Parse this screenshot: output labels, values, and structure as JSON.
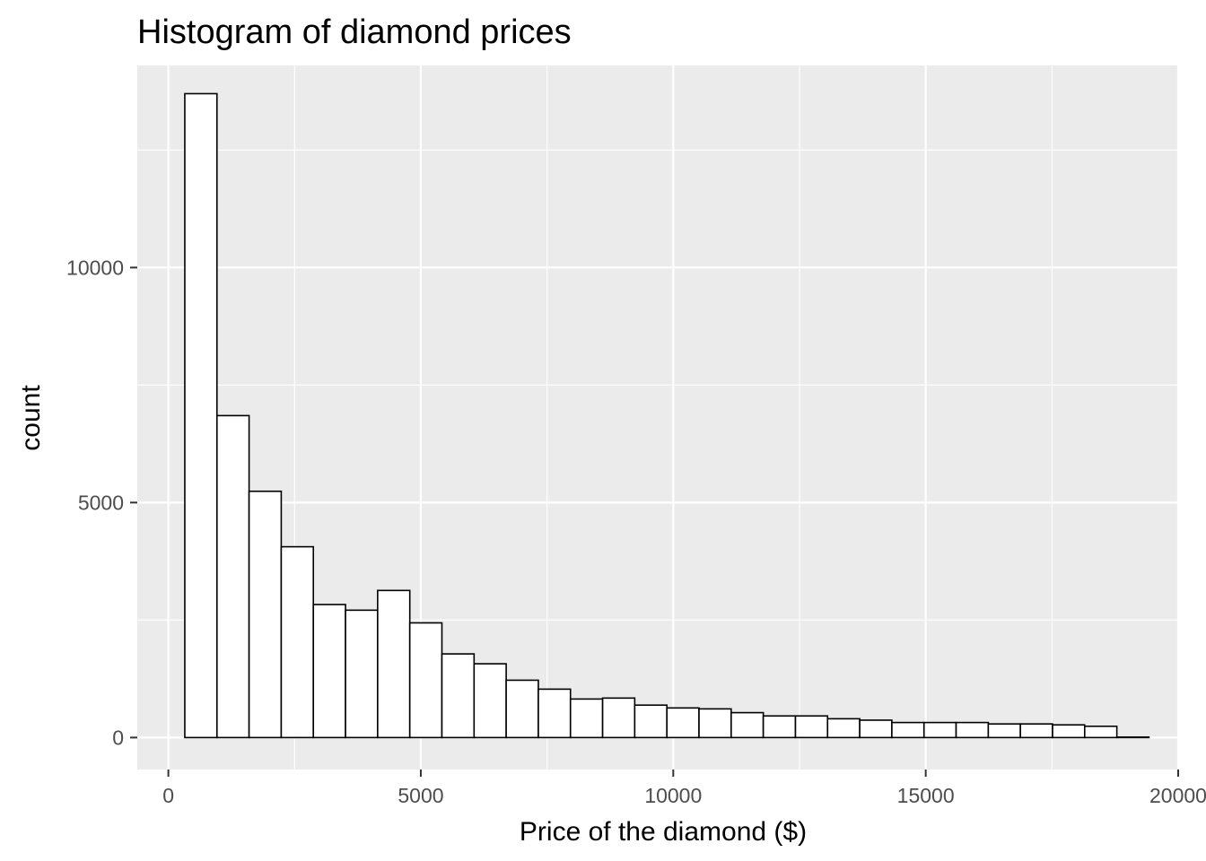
{
  "chart_data": {
    "type": "bar",
    "title": "Histogram of diamond prices",
    "xlabel": "Price of the diamond ($)",
    "ylabel": "count",
    "xlim": [
      -615,
      20000
    ],
    "ylim": [
      -680,
      14300
    ],
    "xticks": [
      0,
      5000,
      10000,
      15000,
      20000
    ],
    "xtick_labels": [
      "0",
      "5000",
      "10000",
      "15000",
      "20000"
    ],
    "yticks": [
      0,
      5000,
      10000
    ],
    "ytick_labels": [
      "0",
      "5000",
      "10000"
    ],
    "xminor": [
      2500,
      7500,
      12500,
      17500
    ],
    "yminor": [
      2500,
      7500,
      12500
    ],
    "grid": true,
    "bins": [
      {
        "x0": 326,
        "x1": 963,
        "count": 13700
      },
      {
        "x0": 963,
        "x1": 1599,
        "count": 6850
      },
      {
        "x0": 1599,
        "x1": 2236,
        "count": 5240
      },
      {
        "x0": 2236,
        "x1": 2872,
        "count": 4060
      },
      {
        "x0": 2872,
        "x1": 3509,
        "count": 2830
      },
      {
        "x0": 3509,
        "x1": 4145,
        "count": 2710
      },
      {
        "x0": 4145,
        "x1": 4782,
        "count": 3130
      },
      {
        "x0": 4782,
        "x1": 5418,
        "count": 2440
      },
      {
        "x0": 5418,
        "x1": 6055,
        "count": 1780
      },
      {
        "x0": 6055,
        "x1": 6691,
        "count": 1570
      },
      {
        "x0": 6691,
        "x1": 7328,
        "count": 1220
      },
      {
        "x0": 7328,
        "x1": 7964,
        "count": 1030
      },
      {
        "x0": 7964,
        "x1": 8601,
        "count": 820
      },
      {
        "x0": 8601,
        "x1": 9237,
        "count": 840
      },
      {
        "x0": 9237,
        "x1": 9874,
        "count": 690
      },
      {
        "x0": 9874,
        "x1": 10510,
        "count": 630
      },
      {
        "x0": 10510,
        "x1": 11147,
        "count": 610
      },
      {
        "x0": 11147,
        "x1": 11783,
        "count": 530
      },
      {
        "x0": 11783,
        "x1": 12420,
        "count": 460
      },
      {
        "x0": 12420,
        "x1": 13056,
        "count": 460
      },
      {
        "x0": 13056,
        "x1": 13693,
        "count": 400
      },
      {
        "x0": 13693,
        "x1": 14329,
        "count": 370
      },
      {
        "x0": 14329,
        "x1": 14966,
        "count": 320
      },
      {
        "x0": 14966,
        "x1": 15602,
        "count": 320
      },
      {
        "x0": 15602,
        "x1": 16239,
        "count": 320
      },
      {
        "x0": 16239,
        "x1": 16875,
        "count": 290
      },
      {
        "x0": 16875,
        "x1": 17512,
        "count": 290
      },
      {
        "x0": 17512,
        "x1": 18148,
        "count": 270
      },
      {
        "x0": 18148,
        "x1": 18785,
        "count": 240
      },
      {
        "x0": 18785,
        "x1": 19421,
        "count": 10
      }
    ],
    "colors": {
      "panel_bg": "#ebebeb",
      "grid": "#ffffff",
      "bar_fill": "#ffffff",
      "bar_stroke": "#000000",
      "tick": "#333333",
      "tick_label": "#4d4d4d",
      "text": "#000000"
    }
  }
}
